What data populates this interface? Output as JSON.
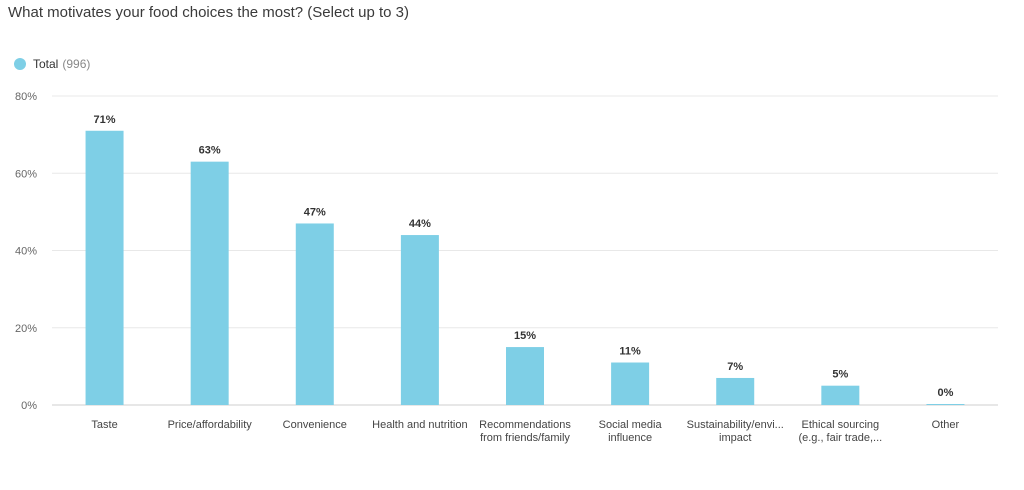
{
  "question": "What motivates your food choices the most? (Select up to 3)",
  "legend": {
    "label": "Total",
    "count": "(996)",
    "color": "#7ecfe6"
  },
  "chart_data": {
    "type": "bar",
    "title": "What motivates your food choices the most? (Select up to 3)",
    "xlabel": "",
    "ylabel": "",
    "ylim": [
      0,
      80
    ],
    "yticks": [
      0,
      20,
      40,
      60,
      80
    ],
    "ytick_labels": [
      "0%",
      "20%",
      "40%",
      "60%",
      "80%"
    ],
    "grid": true,
    "legend_position": "top-left",
    "categories": [
      [
        "Taste"
      ],
      [
        "Price/affordability"
      ],
      [
        "Convenience"
      ],
      [
        "Health and nutrition"
      ],
      [
        "Recommendations",
        "from friends/family"
      ],
      [
        "Social media",
        "influence"
      ],
      [
        "Sustainability/envi...",
        "impact"
      ],
      [
        "Ethical sourcing",
        "(e.g., fair trade,..."
      ],
      [
        "Other"
      ]
    ],
    "series": [
      {
        "name": "Total",
        "color": "#7ecfe6",
        "values": [
          71,
          63,
          47,
          44,
          15,
          11,
          7,
          5,
          0
        ],
        "labels": [
          "71%",
          "63%",
          "47%",
          "44%",
          "15%",
          "11%",
          "7%",
          "5%",
          "0%"
        ]
      }
    ]
  }
}
